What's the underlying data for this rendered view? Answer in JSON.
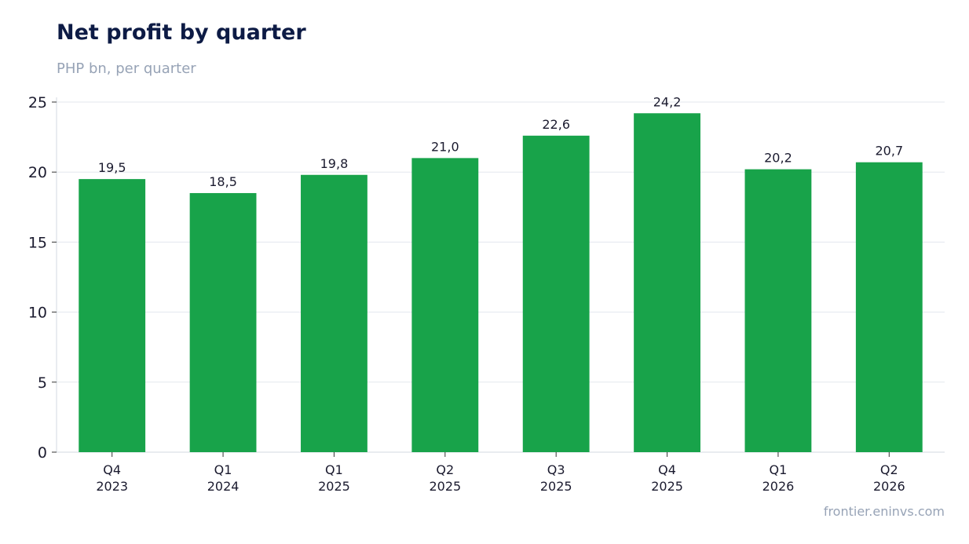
{
  "header": {
    "title": "Net profit by quarter",
    "subtitle": "PHP bn, per quarter"
  },
  "footer": {
    "source": "frontier.eninvs.com"
  },
  "chart_data": {
    "type": "bar",
    "title": "Net profit by quarter",
    "subtitle": "PHP bn, per quarter",
    "xlabel": "",
    "ylabel": "",
    "categories": [
      [
        "Q4",
        "2023"
      ],
      [
        "Q1",
        "2024"
      ],
      [
        "Q1",
        "2025"
      ],
      [
        "Q2",
        "2025"
      ],
      [
        "Q3",
        "2025"
      ],
      [
        "Q4",
        "2025"
      ],
      [
        "Q1",
        "2026"
      ],
      [
        "Q2",
        "2026"
      ]
    ],
    "values": [
      19.5,
      18.5,
      19.8,
      21.0,
      22.6,
      24.2,
      20.2,
      20.7
    ],
    "data_labels": [
      "19,5",
      "18,5",
      "19,8",
      "21,0",
      "22,6",
      "24,2",
      "20,2",
      "20,7"
    ],
    "ylim": [
      0,
      25
    ],
    "yticks": [
      0,
      5,
      10,
      15,
      20,
      25
    ],
    "grid": "horizontal",
    "legend": "none",
    "bar_color": "#18a34a",
    "grid_color": "#e3e7ee",
    "axis_color": "#d3d8e0"
  }
}
